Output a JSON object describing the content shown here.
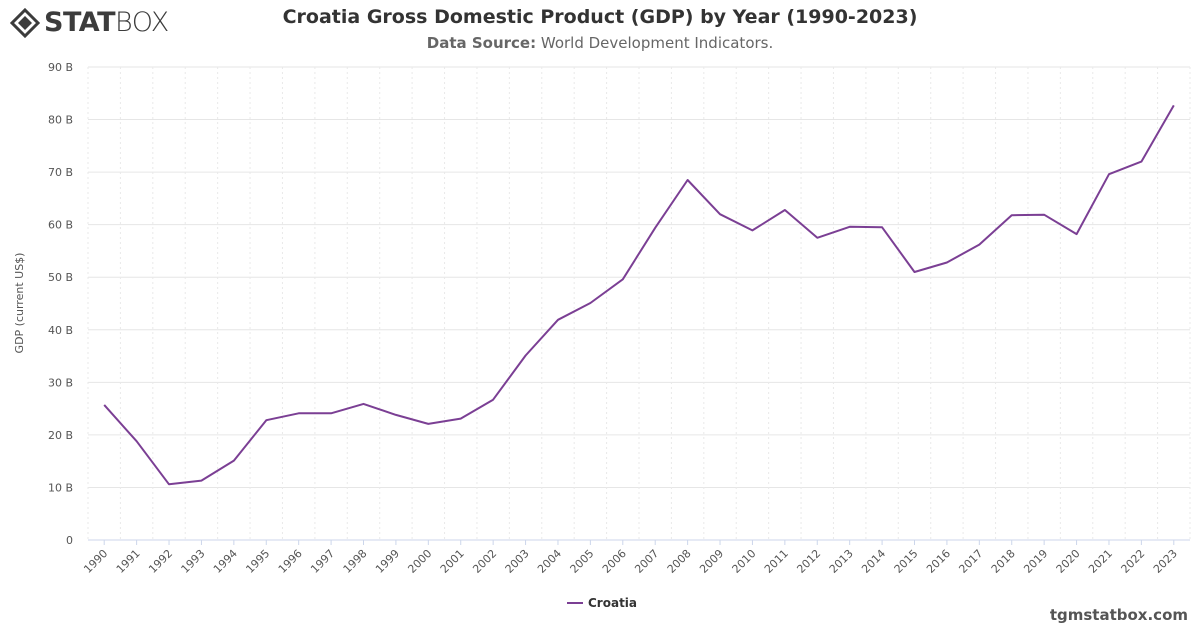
{
  "brand": {
    "logo_bold": "STAT",
    "logo_light": "BOX",
    "footer": "tgmstatbox.com"
  },
  "header": {
    "title": "Croatia Gross Domestic Product (GDP) by Year (1990-2023)",
    "source_label": "Data Source:",
    "source_value": "World Development Indicators."
  },
  "colors": {
    "series": "#7b3f94",
    "grid": "#e6e6e6",
    "axis_text": "#555555"
  },
  "chart_data": {
    "type": "line",
    "title": "Croatia Gross Domestic Product (GDP) by Year (1990-2023)",
    "subtitle": "Data Source: World Development Indicators.",
    "xlabel": "",
    "ylabel": "GDP (current US$)",
    "ylim": [
      0,
      90
    ],
    "yticks": [
      "0",
      "10 B",
      "20 B",
      "30 B",
      "40 B",
      "50 B",
      "60 B",
      "70 B",
      "80 B",
      "90 B"
    ],
    "x": [
      "1990",
      "1991",
      "1992",
      "1993",
      "1994",
      "1995",
      "1996",
      "1997",
      "1998",
      "1999",
      "2000",
      "2001",
      "2002",
      "2003",
      "2004",
      "2005",
      "2006",
      "2007",
      "2008",
      "2009",
      "2010",
      "2011",
      "2012",
      "2013",
      "2014",
      "2015",
      "2016",
      "2017",
      "2018",
      "2019",
      "2020",
      "2021",
      "2022",
      "2023"
    ],
    "series": [
      {
        "name": "Croatia",
        "values": [
          25.7,
          18.8,
          10.6,
          11.3,
          15.1,
          22.8,
          24.1,
          24.1,
          25.9,
          23.8,
          22.1,
          23.1,
          26.7,
          35.1,
          41.9,
          45.1,
          49.6,
          59.4,
          68.5,
          62.0,
          58.9,
          62.8,
          57.5,
          59.6,
          59.5,
          51.0,
          52.8,
          56.2,
          61.8,
          61.9,
          58.2,
          69.6,
          72.0,
          82.7
        ]
      }
    ],
    "grid": true,
    "legend_position": "bottom-center"
  }
}
